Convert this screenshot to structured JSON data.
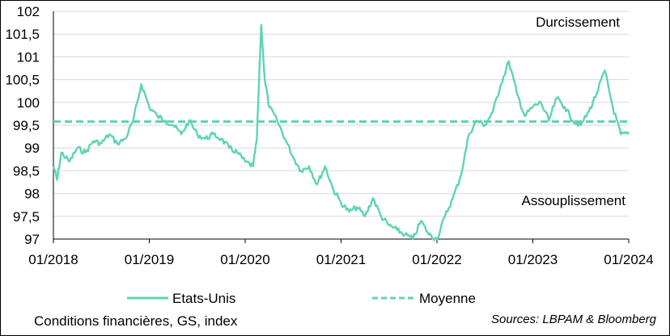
{
  "chart_data": {
    "type": "line",
    "title": "",
    "subtitle_bottom": "Conditions financières, GS, index",
    "source": "Sources: LBPAM & Bloomberg",
    "xlabel": "",
    "ylabel": "",
    "ylim": [
      97,
      102
    ],
    "xlim": [
      "01/2018",
      "01/2024"
    ],
    "y_ticks": [
      "97",
      "97,5",
      "98",
      "98,5",
      "99",
      "99,5",
      "100",
      "100,5",
      "101",
      "101,5",
      "102"
    ],
    "x_ticks": [
      "01/2018",
      "01/2019",
      "01/2020",
      "01/2021",
      "01/2022",
      "01/2023",
      "01/2024"
    ],
    "grid": "horizontal",
    "legend_position": "bottom",
    "annotations": {
      "top_right": "Durcissement",
      "bottom_right": "Assouplissement"
    },
    "colors": {
      "series": "#5fd3b6",
      "grid": "#d9d9d9"
    },
    "series": [
      {
        "name": "Etats-Unis",
        "style": "solid",
        "points": [
          [
            "2018-01",
            98.6
          ],
          [
            "2018-01-15",
            98.3
          ],
          [
            "2018-02",
            98.9
          ],
          [
            "2018-03",
            98.7
          ],
          [
            "2018-04",
            99.0
          ],
          [
            "2018-05",
            98.9
          ],
          [
            "2018-06",
            99.15
          ],
          [
            "2018-07",
            99.1
          ],
          [
            "2018-08",
            99.3
          ],
          [
            "2018-09",
            99.1
          ],
          [
            "2018-10",
            99.2
          ],
          [
            "2018-11",
            99.6
          ],
          [
            "2018-12",
            100.4
          ],
          [
            "2019-01",
            99.9
          ],
          [
            "2019-02",
            99.7
          ],
          [
            "2019-03",
            99.6
          ],
          [
            "2019-04",
            99.5
          ],
          [
            "2019-05",
            99.3
          ],
          [
            "2019-06",
            99.6
          ],
          [
            "2019-07",
            99.3
          ],
          [
            "2019-08",
            99.2
          ],
          [
            "2019-09",
            99.3
          ],
          [
            "2019-10",
            99.2
          ],
          [
            "2019-11",
            99.0
          ],
          [
            "2019-12",
            98.9
          ],
          [
            "2020-01",
            98.7
          ],
          [
            "2020-02",
            98.6
          ],
          [
            "2020-02-15",
            99.2
          ],
          [
            "2020-03",
            101.7
          ],
          [
            "2020-03-15",
            100.5
          ],
          [
            "2020-04",
            99.9
          ],
          [
            "2020-05",
            99.6
          ],
          [
            "2020-06",
            99.2
          ],
          [
            "2020-07",
            98.8
          ],
          [
            "2020-08",
            98.5
          ],
          [
            "2020-09",
            98.6
          ],
          [
            "2020-10",
            98.2
          ],
          [
            "2020-11",
            98.6
          ],
          [
            "2020-12",
            98.1
          ],
          [
            "2021-01",
            97.8
          ],
          [
            "2021-02",
            97.6
          ],
          [
            "2021-03",
            97.7
          ],
          [
            "2021-04",
            97.5
          ],
          [
            "2021-05",
            97.9
          ],
          [
            "2021-06",
            97.5
          ],
          [
            "2021-07",
            97.3
          ],
          [
            "2021-08",
            97.2
          ],
          [
            "2021-09",
            97.1
          ],
          [
            "2021-10",
            97.0
          ],
          [
            "2021-11",
            97.4
          ],
          [
            "2021-12",
            97.1
          ],
          [
            "2022-01",
            97.0
          ],
          [
            "2022-02",
            97.5
          ],
          [
            "2022-03",
            97.9
          ],
          [
            "2022-04",
            98.4
          ],
          [
            "2022-05",
            99.3
          ],
          [
            "2022-06",
            99.6
          ],
          [
            "2022-07",
            99.5
          ],
          [
            "2022-08",
            99.8
          ],
          [
            "2022-09",
            100.4
          ],
          [
            "2022-10",
            100.9
          ],
          [
            "2022-11",
            100.2
          ],
          [
            "2022-12",
            99.7
          ],
          [
            "2023-01",
            99.9
          ],
          [
            "2023-02",
            100.0
          ],
          [
            "2023-03",
            99.6
          ],
          [
            "2023-04",
            100.1
          ],
          [
            "2023-05",
            99.9
          ],
          [
            "2023-06",
            99.6
          ],
          [
            "2023-07",
            99.5
          ],
          [
            "2023-08",
            99.8
          ],
          [
            "2023-09",
            100.2
          ],
          [
            "2023-10",
            100.7
          ],
          [
            "2023-11",
            99.9
          ],
          [
            "2023-12",
            99.3
          ],
          [
            "2024-01",
            99.3
          ]
        ]
      },
      {
        "name": "Moyenne",
        "style": "dashed",
        "value": 99.58
      }
    ]
  }
}
